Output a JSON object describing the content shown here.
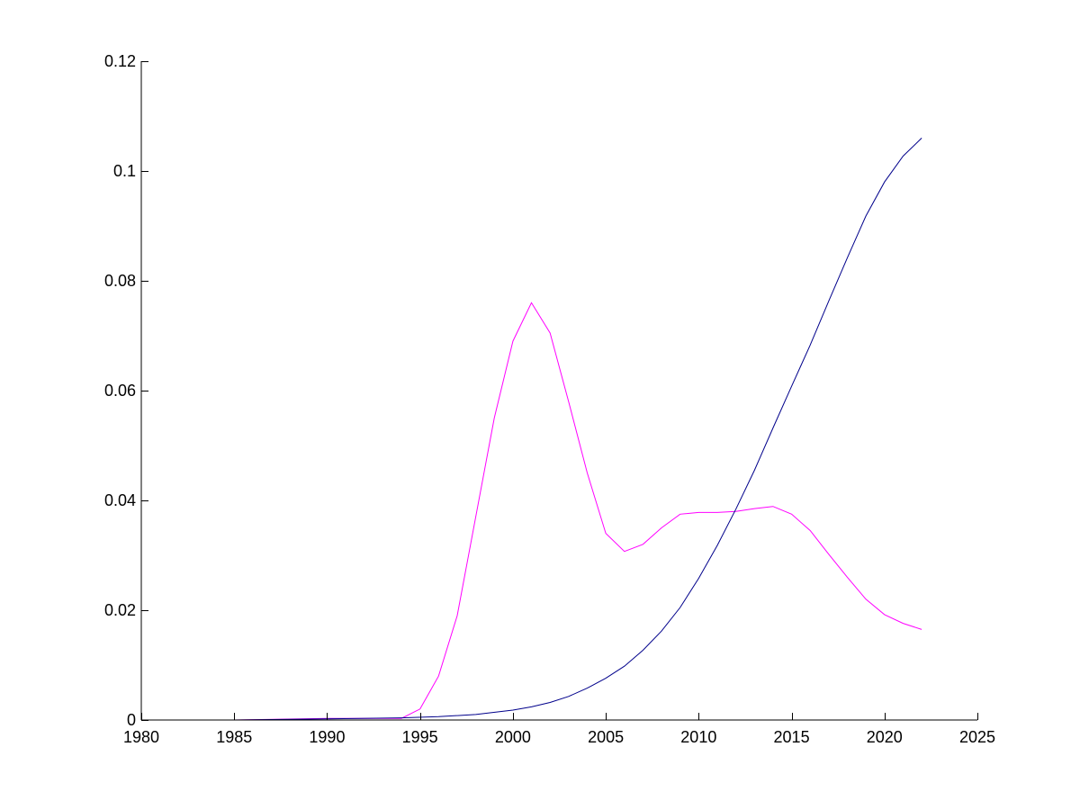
{
  "chart_data": {
    "type": "line",
    "title": "",
    "xlabel": "",
    "ylabel": "",
    "xlim": [
      1980,
      2025
    ],
    "ylim": [
      0,
      0.12
    ],
    "xticks": [
      1980,
      1985,
      1990,
      1995,
      2000,
      2005,
      2010,
      2015,
      2020,
      2025
    ],
    "xtick_labels": [
      "1980",
      "1985",
      "1990",
      "1995",
      "2000",
      "2005",
      "2010",
      "2015",
      "2020",
      "2025"
    ],
    "yticks": [
      0,
      0.02,
      0.04,
      0.06,
      0.08,
      0.1,
      0.12
    ],
    "ytick_labels": [
      "0",
      "0.02",
      "0.04",
      "0.06",
      "0.08",
      "0.1",
      "0.12"
    ],
    "grid": false,
    "legend": "none",
    "series": [
      {
        "color": "#ff00ff",
        "x": [
          1980,
          1985,
          1990,
          1994,
          1995,
          1996,
          1997,
          1998,
          1999,
          2000,
          2001,
          2002,
          2003,
          2004,
          2005,
          2006,
          2007,
          2008,
          2009,
          2010,
          2011,
          2012,
          2013,
          2014,
          2015,
          2016,
          2017,
          2018,
          2019,
          2020,
          2021,
          2022
        ],
        "y": [
          0,
          0,
          0.0003,
          0.0003,
          0.002,
          0.008,
          0.019,
          0.037,
          0.055,
          0.069,
          0.076,
          0.0705,
          0.058,
          0.045,
          0.034,
          0.0307,
          0.032,
          0.035,
          0.0375,
          0.0378,
          0.0378,
          0.038,
          0.0385,
          0.0389,
          0.0375,
          0.0345,
          0.0302,
          0.026,
          0.022,
          0.0192,
          0.0176,
          0.0165
        ]
      },
      {
        "color": "#00008b",
        "x": [
          1980,
          1985,
          1990,
          1994,
          1996,
          1998,
          2000,
          2001,
          2002,
          2003,
          2004,
          2005,
          2006,
          2007,
          2008,
          2009,
          2010,
          2011,
          2012,
          2013,
          2014,
          2015,
          2016,
          2017,
          2018,
          2019,
          2020,
          2021,
          2022
        ],
        "y": [
          0,
          0,
          0.0002,
          0.0004,
          0.0006,
          0.001,
          0.0018,
          0.0024,
          0.0032,
          0.0043,
          0.0058,
          0.0076,
          0.0098,
          0.0127,
          0.0162,
          0.0205,
          0.0258,
          0.0318,
          0.0384,
          0.0455,
          0.0532,
          0.0608,
          0.0683,
          0.0763,
          0.0842,
          0.0918,
          0.098,
          0.1027,
          0.106
        ]
      }
    ]
  }
}
